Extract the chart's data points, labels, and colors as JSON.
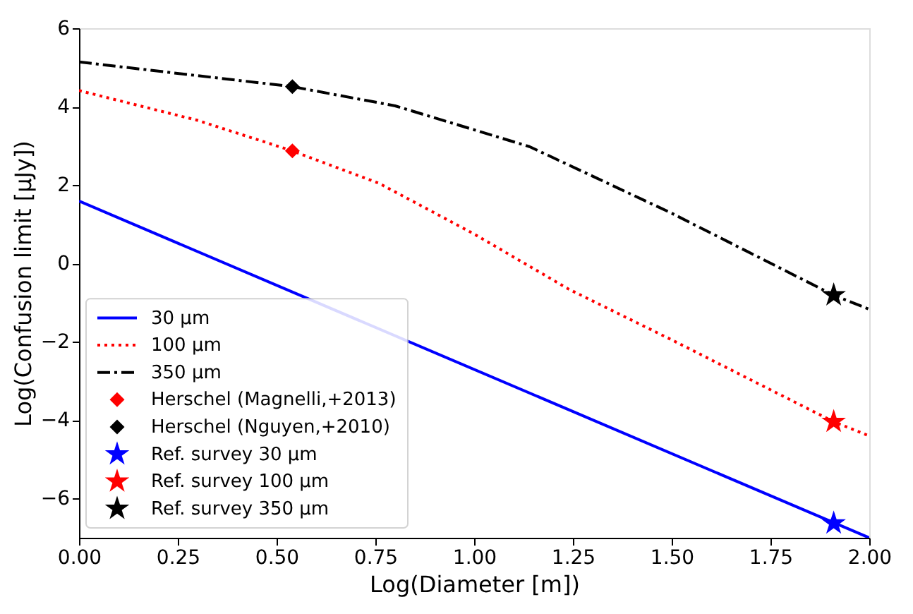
{
  "chart_data": {
    "type": "line",
    "xlabel": "Log(Diameter [m])",
    "ylabel": "Log(Confusion limit [μJy])",
    "xlim": [
      0,
      2
    ],
    "ylim": [
      -7,
      6
    ],
    "xticks": [
      {
        "value": 0,
        "label": "0.00"
      },
      {
        "value": 0.25,
        "label": "0.25"
      },
      {
        "value": 0.5,
        "label": "0.50"
      },
      {
        "value": 0.75,
        "label": "0.75"
      },
      {
        "value": 1,
        "label": "1.00"
      },
      {
        "value": 1.25,
        "label": "1.25"
      },
      {
        "value": 1.5,
        "label": "1.50"
      },
      {
        "value": 1.75,
        "label": "1.75"
      },
      {
        "value": 2,
        "label": "2.00"
      }
    ],
    "yticks": [
      -6,
      -4,
      -2,
      0,
      2,
      4,
      6
    ],
    "grid": false,
    "legend": "bottom left",
    "series": [
      {
        "name": "30 μm",
        "color": "#0000ff",
        "line_style": "solid",
        "marker": "none",
        "x": [
          0,
          2
        ],
        "values": [
          1.59,
          -7.0
        ]
      },
      {
        "name": "100 μm",
        "color": "#ff0000",
        "line_style": "dotted",
        "marker": "none",
        "x": [
          0,
          0.3,
          0.54,
          0.76,
          1.0,
          1.24,
          1.5,
          1.91,
          2.0
        ],
        "values": [
          4.41,
          3.65,
          2.87,
          2.04,
          0.75,
          -0.66,
          -1.95,
          -4.04,
          -4.4
        ]
      },
      {
        "name": "350 μm",
        "color": "#000000",
        "line_style": "dashdot",
        "marker": "none",
        "x": [
          0,
          0.54,
          0.8,
          1.14,
          1.5,
          1.91,
          2.0
        ],
        "values": [
          5.14,
          4.51,
          4.02,
          2.98,
          1.28,
          -0.81,
          -1.17
        ]
      },
      {
        "name": "Herschel (Magnelli,+2013)",
        "type": "scatter",
        "color": "#ff0000",
        "marker": "diamond",
        "x": [
          0.54
        ],
        "values": [
          2.87
        ]
      },
      {
        "name": "Herschel (Nguyen,+2010)",
        "type": "scatter",
        "color": "#000000",
        "marker": "diamond",
        "x": [
          0.54
        ],
        "values": [
          4.51
        ]
      },
      {
        "name": "Ref. survey 30 μm",
        "type": "scatter",
        "color": "#0000ff",
        "marker": "star",
        "x": [
          1.91
        ],
        "values": [
          -6.63
        ]
      },
      {
        "name": "Ref. survey 100 μm",
        "type": "scatter",
        "color": "#ff0000",
        "marker": "star",
        "x": [
          1.91
        ],
        "values": [
          -4.04
        ]
      },
      {
        "name": "Ref. survey 350 μm",
        "type": "scatter",
        "color": "#000000",
        "marker": "star",
        "x": [
          1.91
        ],
        "values": [
          -0.81
        ]
      }
    ]
  }
}
